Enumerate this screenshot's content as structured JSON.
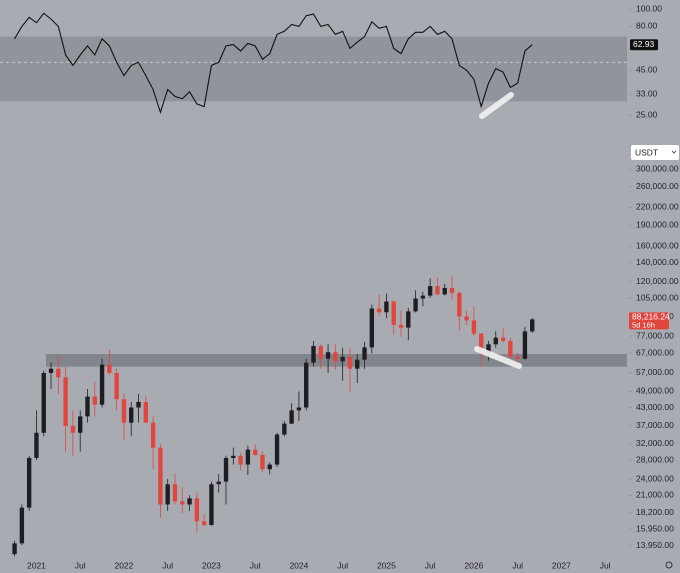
{
  "chart_data": [
    {
      "type": "line",
      "log_scale": true,
      "color": "#111111",
      "x": [
        "2020-10",
        "2020-11",
        "2020-12",
        "2021-01",
        "2021-02",
        "2021-03",
        "2021-04",
        "2021-05",
        "2021-06",
        "2021-07",
        "2021-08",
        "2021-09",
        "2021-10",
        "2021-11",
        "2021-12",
        "2022-01",
        "2022-02",
        "2022-03",
        "2022-04",
        "2022-05",
        "2022-06",
        "2022-07",
        "2022-08",
        "2022-09",
        "2022-10",
        "2022-11",
        "2022-12",
        "2023-01",
        "2023-02",
        "2023-03",
        "2023-04",
        "2023-05",
        "2023-06",
        "2023-07",
        "2023-08",
        "2023-09",
        "2023-10",
        "2023-11",
        "2023-12",
        "2024-01",
        "2024-02",
        "2024-03",
        "2024-04",
        "2024-05",
        "2024-06",
        "2024-07",
        "2024-08",
        "2024-09",
        "2024-10",
        "2024-11",
        "2024-12",
        "2025-01",
        "2025-02",
        "2025-03",
        "2025-04",
        "2025-05",
        "2025-06",
        "2025-07",
        "2025-08",
        "2025-09",
        "2025-10",
        "2025-11",
        "2025-12",
        "2026-01",
        "2026-02",
        "2026-03",
        "2026-04",
        "2026-05",
        "2026-06",
        "2026-07",
        "2026-08",
        "2026-09"
      ],
      "values": [
        68,
        80,
        90,
        84,
        95,
        88,
        80,
        55,
        48,
        55,
        62,
        55,
        68,
        62,
        50,
        42,
        48,
        50,
        42,
        35,
        26,
        35,
        32,
        31,
        34,
        29,
        28,
        48,
        50,
        62,
        63,
        58,
        64,
        62,
        52,
        56,
        72,
        75,
        82,
        80,
        92,
        94,
        80,
        82,
        72,
        75,
        60,
        65,
        70,
        85,
        78,
        80,
        60,
        56,
        68,
        74,
        74,
        80,
        72,
        75,
        68,
        48,
        45,
        40,
        28,
        38,
        46,
        44,
        36,
        38,
        58,
        62.93
      ],
      "ylim": [
        22,
        113
      ],
      "yticks": [
        {
          "value": 100,
          "label": "100.00"
        },
        {
          "value": 80,
          "label": "80.00"
        },
        {
          "value": 45,
          "label": "45.00"
        },
        {
          "value": 33,
          "label": "33.00"
        },
        {
          "value": 25,
          "label": "25.00"
        }
      ],
      "band": [
        30,
        70
      ],
      "midline": 50
    },
    {
      "type": "candlestick",
      "log_scale": true,
      "currency": "USDT",
      "up_color": "#1e1e22",
      "down_color": "#e0463d",
      "x": [
        "2020-10",
        "2020-11",
        "2020-12",
        "2021-01",
        "2021-02",
        "2021-03",
        "2021-04",
        "2021-05",
        "2021-06",
        "2021-07",
        "2021-08",
        "2021-09",
        "2021-10",
        "2021-11",
        "2021-12",
        "2022-01",
        "2022-02",
        "2022-03",
        "2022-04",
        "2022-05",
        "2022-06",
        "2022-07",
        "2022-08",
        "2022-09",
        "2022-10",
        "2022-11",
        "2022-12",
        "2023-01",
        "2023-02",
        "2023-03",
        "2023-04",
        "2023-05",
        "2023-06",
        "2023-07",
        "2023-08",
        "2023-09",
        "2023-10",
        "2023-11",
        "2023-12",
        "2024-01",
        "2024-02",
        "2024-03",
        "2024-04",
        "2024-05",
        "2024-06",
        "2024-07",
        "2024-08",
        "2024-09",
        "2024-10",
        "2024-11",
        "2024-12",
        "2025-01",
        "2025-02",
        "2025-03",
        "2025-04",
        "2025-05",
        "2025-06",
        "2025-07",
        "2025-08",
        "2025-09",
        "2025-10",
        "2025-11",
        "2025-12",
        "2026-01",
        "2026-02",
        "2026-03",
        "2026-04",
        "2026-05",
        "2026-06",
        "2026-07",
        "2026-08",
        "2026-09"
      ],
      "open": [
        13000,
        14200,
        19000,
        28500,
        35000,
        57000,
        59000,
        55000,
        37000,
        35000,
        40000,
        47000,
        44000,
        61000,
        57000,
        46000,
        38000,
        43000,
        45000,
        38000,
        31000,
        19500,
        23000,
        20000,
        19500,
        20500,
        17000,
        16500,
        23000,
        23500,
        28500,
        29000,
        27000,
        30500,
        29200,
        26000,
        27000,
        34500,
        37700,
        42000,
        43000,
        62000,
        71000,
        64000,
        67500,
        62700,
        65000,
        59000,
        63500,
        70200,
        96400,
        93500,
        102000,
        84300,
        82500,
        94200,
        104600,
        107100,
        115700,
        108200,
        114000,
        109500,
        90400,
        87500,
        78500,
        67000,
        72000,
        76000,
        74000,
        65000,
        64000,
        80000
      ],
      "high": [
        14500,
        19500,
        29000,
        42000,
        58000,
        62000,
        65000,
        60000,
        42000,
        42000,
        50000,
        53000,
        64000,
        69000,
        59000,
        48000,
        45000,
        48000,
        47000,
        40000,
        32000,
        24000,
        25000,
        22500,
        21000,
        21500,
        18000,
        23500,
        25000,
        29000,
        31000,
        29800,
        31500,
        31800,
        30000,
        27500,
        35000,
        38500,
        44500,
        49000,
        64000,
        74000,
        72500,
        72000,
        72000,
        70000,
        70000,
        66500,
        73500,
        99500,
        108000,
        109000,
        103000,
        95000,
        97000,
        111900,
        110500,
        123200,
        124400,
        117900,
        126000,
        111000,
        94500,
        97900,
        79000,
        74000,
        80000,
        82000,
        76000,
        67000,
        83000,
        89000
      ],
      "low": [
        12800,
        14000,
        18500,
        28000,
        34000,
        50000,
        48000,
        30000,
        29000,
        30000,
        38000,
        40000,
        43000,
        56000,
        42000,
        33000,
        34000,
        38000,
        38000,
        26000,
        17500,
        18500,
        19500,
        18200,
        18500,
        15500,
        16300,
        16400,
        21500,
        19500,
        27000,
        25800,
        24800,
        29000,
        25300,
        24900,
        26500,
        34000,
        37600,
        38500,
        42000,
        60000,
        59000,
        57000,
        58500,
        53500,
        49000,
        52500,
        58900,
        66800,
        90500,
        89000,
        78000,
        76600,
        74500,
        93400,
        98200,
        105100,
        107300,
        107200,
        104000,
        80600,
        84400,
        77000,
        60000,
        63000,
        70000,
        73000,
        63000,
        60500,
        63500,
        79000
      ],
      "close": [
        14200,
        19000,
        28500,
        35000,
        57000,
        59000,
        55000,
        37000,
        35000,
        40000,
        47000,
        44000,
        61000,
        57000,
        46000,
        38000,
        43000,
        45000,
        38000,
        31000,
        19500,
        23000,
        20000,
        19500,
        20500,
        17000,
        16500,
        23000,
        23500,
        28500,
        29000,
        27000,
        30500,
        29200,
        26000,
        27000,
        34500,
        37700,
        42000,
        43000,
        62000,
        71000,
        64000,
        67500,
        62700,
        65000,
        59000,
        63500,
        70200,
        96400,
        93500,
        102000,
        84300,
        82500,
        94200,
        104600,
        107100,
        115700,
        108200,
        114000,
        109500,
        90400,
        87500,
        78500,
        67000,
        72000,
        76000,
        74000,
        65000,
        64000,
        80000,
        88216.24
      ],
      "last_price": {
        "value": 88216.24,
        "label": "88,216.24"
      },
      "countdown": "5d 16h",
      "zone": [
        60000,
        66500
      ],
      "xlim": [
        "2020-08",
        "2027-10"
      ],
      "xticks": [
        {
          "value": "2021-01",
          "label": "2021"
        },
        {
          "value": "2021-07",
          "label": "Jul"
        },
        {
          "value": "2022-01",
          "label": "2022"
        },
        {
          "value": "2022-07",
          "label": "Jul"
        },
        {
          "value": "2023-01",
          "label": "2023"
        },
        {
          "value": "2023-07",
          "label": "Jul"
        },
        {
          "value": "2024-01",
          "label": "2024"
        },
        {
          "value": "2024-07",
          "label": "Jul"
        },
        {
          "value": "2025-01",
          "label": "2025"
        },
        {
          "value": "2025-07",
          "label": "Jul"
        },
        {
          "value": "2026-01",
          "label": "2026"
        },
        {
          "value": "2026-07",
          "label": "Jul"
        },
        {
          "value": "2027-01",
          "label": "2027"
        },
        {
          "value": "2027-07",
          "label": "Jul"
        }
      ],
      "ylim": [
        12500,
        410000
      ],
      "yticks": [
        {
          "value": 300000,
          "label": "300,000.00"
        },
        {
          "value": 260000,
          "label": "260,000.00"
        },
        {
          "value": 220000,
          "label": "220,000.00"
        },
        {
          "value": 190000,
          "label": "190,000.00"
        },
        {
          "value": 160000,
          "label": "160,000.00"
        },
        {
          "value": 140000,
          "label": "140,000.00"
        },
        {
          "value": 120000,
          "label": "120,000.00"
        },
        {
          "value": 105000,
          "label": "105,000.00"
        },
        {
          "value": 90000,
          "label": "90,000.00"
        },
        {
          "value": 77000,
          "label": "77,000.00"
        },
        {
          "value": 67000,
          "label": "67,000.00"
        },
        {
          "value": 57000,
          "label": "57,000.00"
        },
        {
          "value": 49000,
          "label": "49,000.00"
        },
        {
          "value": 43000,
          "label": "43,000.00"
        },
        {
          "value": 37000,
          "label": "37,000.00"
        },
        {
          "value": 32000,
          "label": "32,000.00"
        },
        {
          "value": 28000,
          "label": "28,000.00"
        },
        {
          "value": 24000,
          "label": "24,000.00"
        },
        {
          "value": 21000,
          "label": "21,000.00"
        },
        {
          "value": 18200,
          "label": "18,200.00"
        },
        {
          "value": 15950,
          "label": "15,950.00"
        },
        {
          "value": 13950,
          "label": "13,950.00"
        }
      ]
    }
  ]
}
